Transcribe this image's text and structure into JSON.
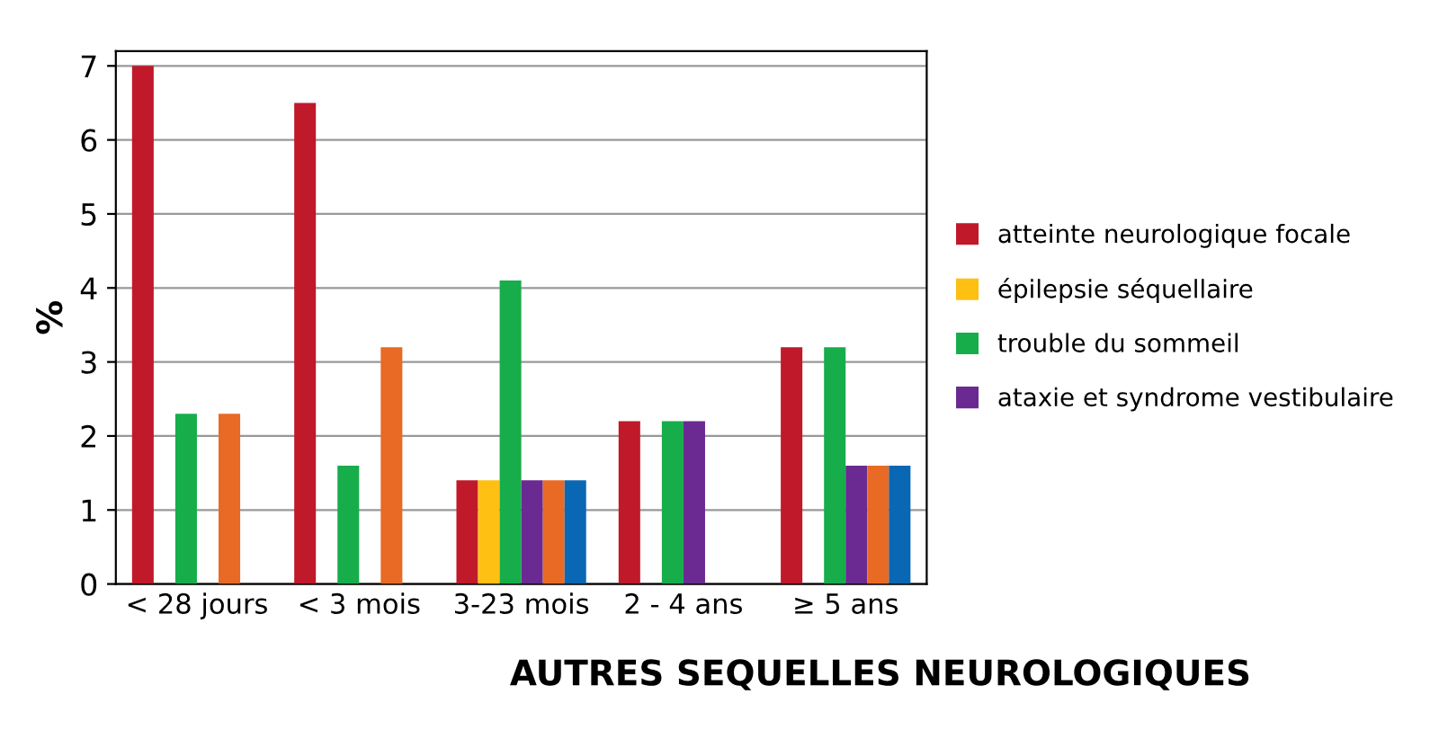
{
  "chart_data": {
    "type": "bar",
    "xlabel": "AUTRES SEQUELLES NEUROLOGIQUES",
    "ylabel": "%",
    "categories": [
      "< 28 jours",
      "< 3 mois",
      "3-23 mois",
      "2 - 4 ans",
      "≥ 5 ans"
    ],
    "series": [
      {
        "name": "atteinte neurologique focale",
        "color": "#c0192a",
        "values": [
          7.0,
          6.5,
          1.4,
          2.2,
          3.2
        ]
      },
      {
        "name": "épilepsie séquellaire",
        "color": "#fdc013",
        "values": [
          0,
          0,
          1.4,
          0,
          0
        ]
      },
      {
        "name": "trouble du sommeil",
        "color": "#17ad4b",
        "values": [
          2.3,
          1.6,
          4.1,
          2.2,
          3.2
        ]
      },
      {
        "name": "ataxie et syndrome vestibulaire",
        "color": "#6a2a91",
        "values": [
          0,
          0,
          1.4,
          2.2,
          1.6
        ]
      },
      {
        "color": "#e96a24",
        "values": [
          2.3,
          3.2,
          1.4,
          0,
          1.6
        ]
      },
      {
        "color": "#0a67b3",
        "values": [
          0,
          0,
          1.4,
          0,
          1.6
        ]
      }
    ],
    "ylim": [
      0,
      7.2
    ],
    "yticks": [
      0,
      1,
      2,
      3,
      4,
      5,
      6,
      7
    ],
    "grid": "y",
    "legend": "right"
  }
}
